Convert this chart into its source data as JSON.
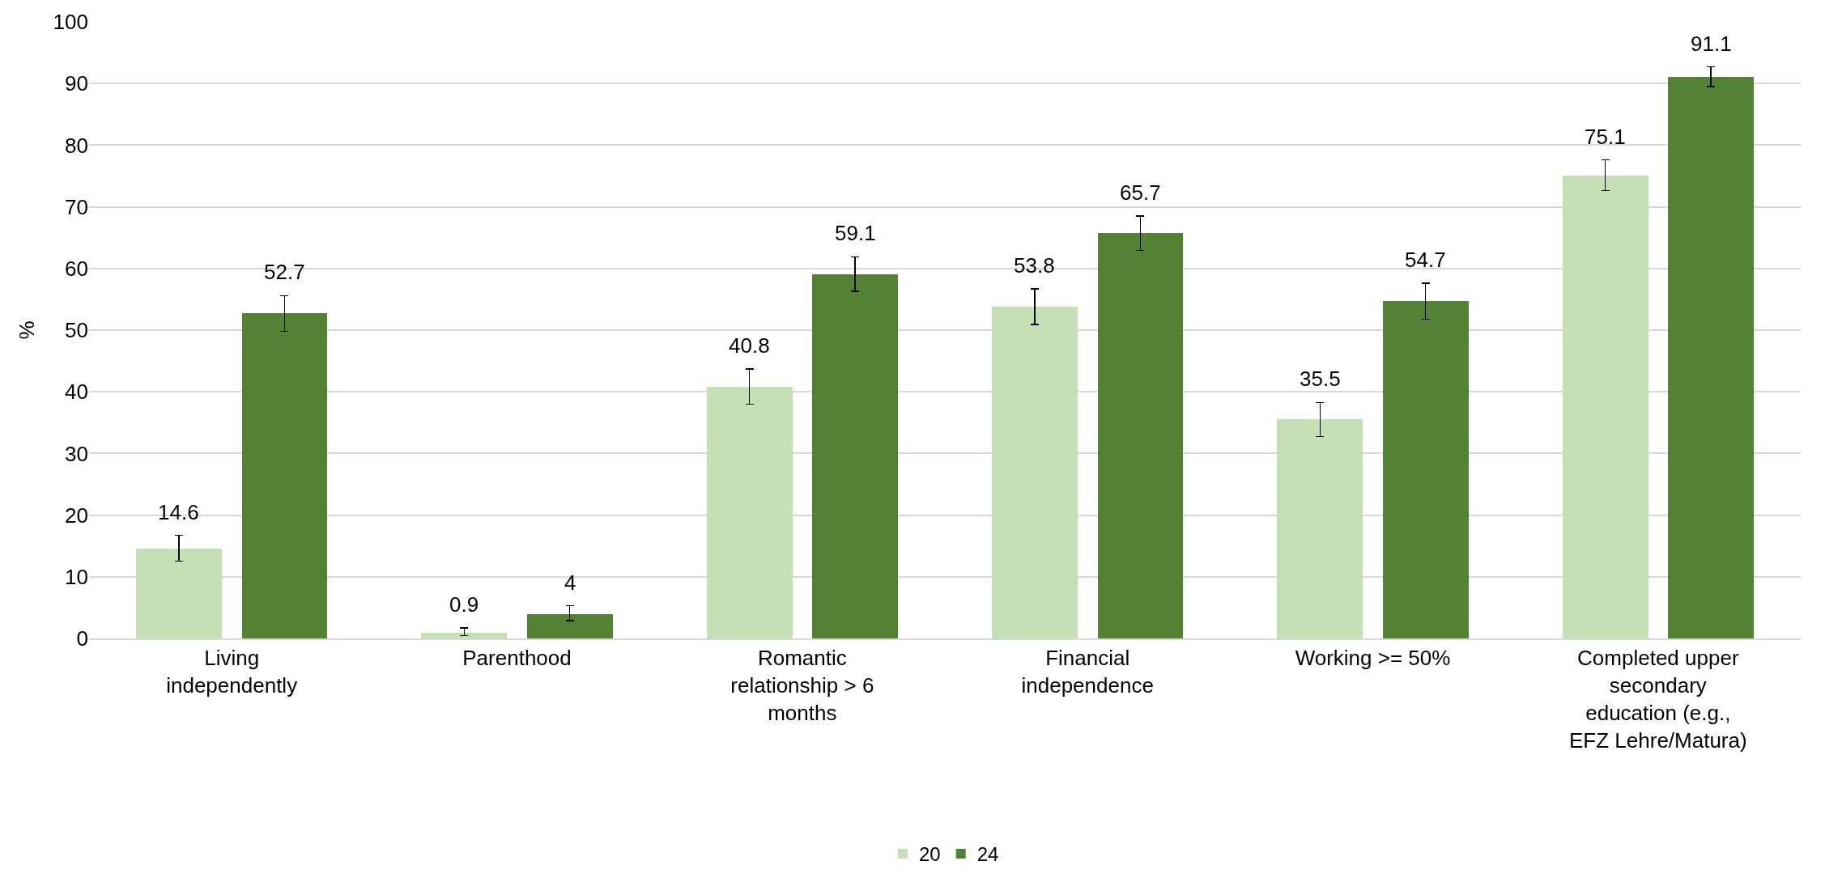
{
  "chart_data": {
    "type": "bar",
    "ylabel": "%",
    "categories": [
      "Living independently",
      "Parenthood",
      "Romantic relationship > 6 months",
      "Financial independence",
      "Working >= 50%",
      "Completed upper secondary education (e.g., EFZ Lehre/Matura)"
    ],
    "series": [
      {
        "name": "20",
        "color": "#c5e0b4",
        "values": [
          14.6,
          0.9,
          40.8,
          53.8,
          35.5,
          75.1
        ],
        "errors": [
          2.1,
          [
            0.5,
            1.7
          ],
          [
            38.0,
            43.7
          ],
          2.9,
          2.8,
          2.5
        ]
      },
      {
        "name": "24",
        "color": "#548235",
        "values": [
          52.7,
          4,
          59.1,
          65.7,
          54.7,
          91.1
        ],
        "errors": [
          2.9,
          [
            2.9,
            5.3
          ],
          2.8,
          2.8,
          2.9,
          1.6
        ]
      }
    ],
    "ylim": [
      0,
      100
    ],
    "yticks": [
      0,
      10,
      20,
      30,
      40,
      50,
      60,
      70,
      80,
      90,
      100
    ],
    "grid": "y",
    "legend": "bottom",
    "data_labels": true
  }
}
